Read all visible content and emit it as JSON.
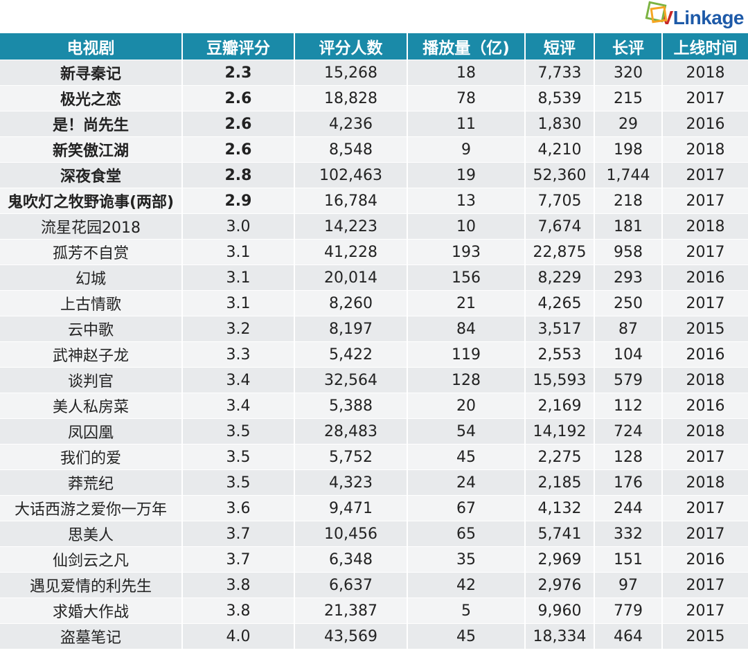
{
  "logo": {
    "v": "V",
    "rest": "Linkage"
  },
  "chart_data": {
    "type": "table",
    "columns": [
      "电视剧",
      "豆瓣评分",
      "评分人数",
      "播放量（亿)",
      "短评",
      "长评",
      "上线时间"
    ],
    "rows": [
      [
        "新寻秦记",
        "2.3",
        "15,268",
        "18",
        "7,733",
        "320",
        "2018"
      ],
      [
        "极光之恋",
        "2.6",
        "18,828",
        "78",
        "8,539",
        "215",
        "2017"
      ],
      [
        "是！尚先生",
        "2.6",
        "4,236",
        "11",
        "1,830",
        "29",
        "2016"
      ],
      [
        "新笑傲江湖",
        "2.6",
        "8,548",
        "9",
        "4,210",
        "198",
        "2018"
      ],
      [
        "深夜食堂",
        "2.8",
        "102,463",
        "19",
        "52,360",
        "1,744",
        "2017"
      ],
      [
        "鬼吹灯之牧野诡事(两部)",
        "2.9",
        "16,784",
        "13",
        "7,705",
        "218",
        "2017"
      ],
      [
        "流星花园2018",
        "3.0",
        "14,223",
        "10",
        "7,674",
        "181",
        "2018"
      ],
      [
        "孤芳不自赏",
        "3.1",
        "41,228",
        "193",
        "22,875",
        "958",
        "2017"
      ],
      [
        "幻城",
        "3.1",
        "20,014",
        "156",
        "8,229",
        "293",
        "2016"
      ],
      [
        "上古情歌",
        "3.1",
        "8,260",
        "21",
        "4,265",
        "250",
        "2017"
      ],
      [
        "云中歌",
        "3.2",
        "8,197",
        "84",
        "3,517",
        "87",
        "2015"
      ],
      [
        "武神赵子龙",
        "3.3",
        "5,422",
        "119",
        "2,553",
        "104",
        "2016"
      ],
      [
        "谈判官",
        "3.4",
        "32,564",
        "128",
        "15,593",
        "579",
        "2018"
      ],
      [
        "美人私房菜",
        "3.4",
        "5,388",
        "20",
        "2,169",
        "112",
        "2016"
      ],
      [
        "凤囚凰",
        "3.5",
        "28,483",
        "54",
        "14,192",
        "724",
        "2018"
      ],
      [
        "我们的爱",
        "3.5",
        "5,752",
        "45",
        "2,275",
        "128",
        "2017"
      ],
      [
        "莽荒纪",
        "3.5",
        "4,323",
        "24",
        "2,185",
        "176",
        "2018"
      ],
      [
        "大话西游之爱你一万年",
        "3.6",
        "9,471",
        "67",
        "4,132",
        "244",
        "2017"
      ],
      [
        "思美人",
        "3.7",
        "10,456",
        "65",
        "5,741",
        "332",
        "2017"
      ],
      [
        "仙剑云之凡",
        "3.7",
        "6,348",
        "35",
        "2,969",
        "151",
        "2016"
      ],
      [
        "遇见爱情的利先生",
        "3.8",
        "6,637",
        "42",
        "2,976",
        "97",
        "2017"
      ],
      [
        "求婚大作战",
        "3.8",
        "21,387",
        "5",
        "9,960",
        "779",
        "2017"
      ],
      [
        "盗墓笔记",
        "4.0",
        "43,569",
        "45",
        "18,334",
        "464",
        "2015"
      ]
    ],
    "bold_rows": 6
  }
}
